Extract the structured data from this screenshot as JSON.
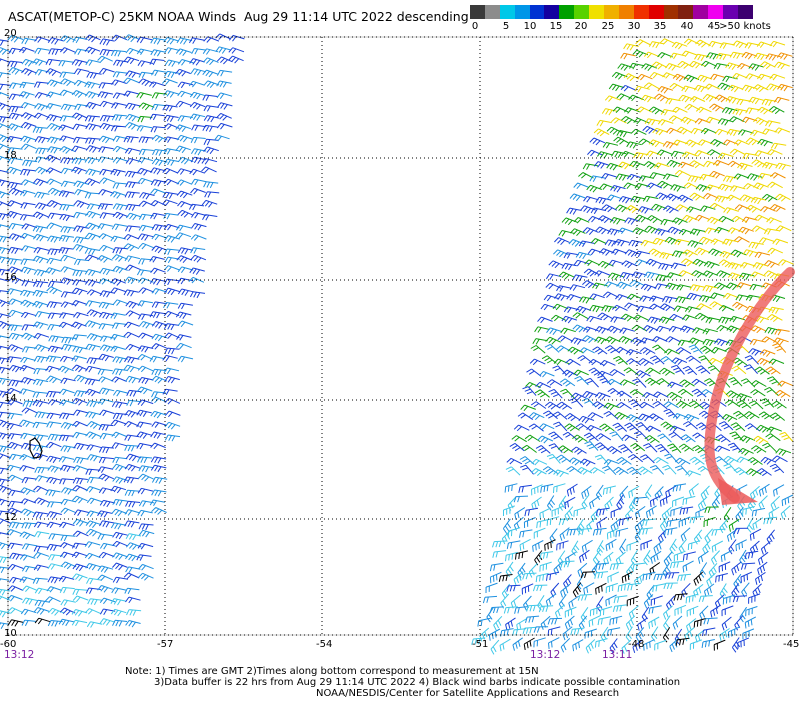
{
  "title": "ASCAT(METOP-C) 25KM NOAA Winds  Aug 29 11:14 UTC 2022 descending",
  "color_scale": {
    "colors": [
      "#3a3a3a",
      "#8c8c8c",
      "#00c8e8",
      "#0096e8",
      "#0032d2",
      "#1400a0",
      "#00a000",
      "#58d200",
      "#f0e000",
      "#f0b000",
      "#f08000",
      "#f03000",
      "#e00000",
      "#a03000",
      "#802010",
      "#a000a0",
      "#f000f0",
      "#6a00b0",
      "#3c0070"
    ],
    "labels": [
      "0",
      "5",
      "10",
      "15",
      "20",
      "25",
      "30",
      "35",
      "40",
      "45",
      ">50 knots"
    ]
  },
  "axes": {
    "lat_labels": [
      "20",
      "18",
      "16",
      "14",
      "12",
      "10"
    ],
    "lon_labels": [
      "-60",
      "-57",
      "-54",
      "-51",
      "-48",
      "-45"
    ]
  },
  "swath_times": [
    "13:12",
    "13:12",
    "13:11"
  ],
  "notes": [
    "Note: 1) Times are GMT 2)Times along bottom correspond to measurement at 15N",
    "3)Data buffer is 22 hrs from Aug 29 11:14 UTC 2022 4) Black wind barbs indicate possible contamination",
    "NOAA/NESDIS/Center for Satellite Applications and Research"
  ],
  "wind_colors": {
    "calm": "#40c8e8",
    "light": "#1e90e0",
    "moderate": "#1840d8",
    "fresh": "#10a010",
    "strong": "#f0d800",
    "gale": "#f09000",
    "contaminated": "#000000",
    "arrow": "#ec5a5a"
  }
}
